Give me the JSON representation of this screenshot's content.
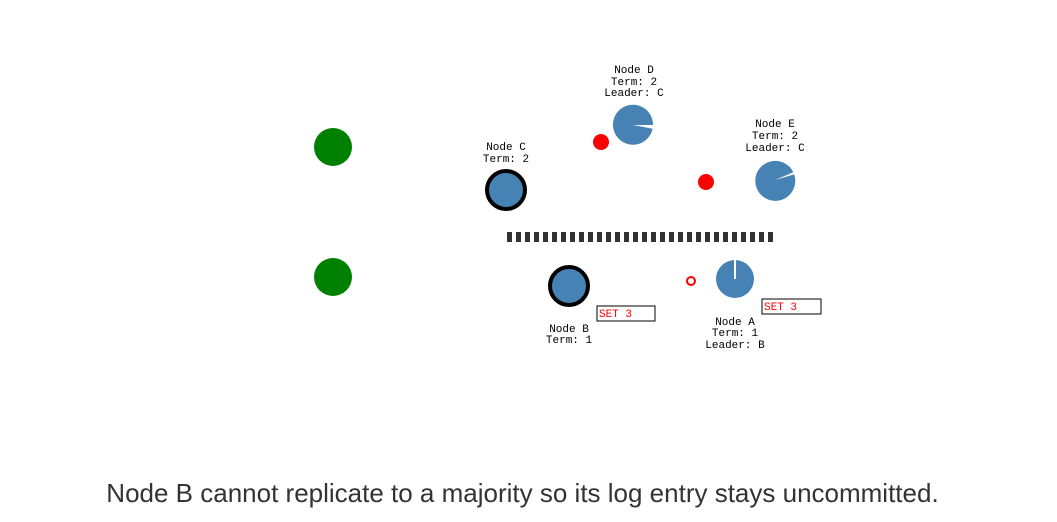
{
  "colors": {
    "client": "#008000",
    "node": "#4682b4",
    "message": "#ff0000",
    "partition": "#333333",
    "leader_ring": "#000000"
  },
  "nodes": {
    "a": {
      "name": "Node A",
      "term": "Term: 1",
      "leader": "Leader: B",
      "log_entry": "SET 3"
    },
    "b": {
      "name": "Node B",
      "term": "Term: 1",
      "log_entry": "SET 3"
    },
    "c": {
      "name": "Node C",
      "term": "Term: 2"
    },
    "d": {
      "name": "Node D",
      "term": "Term: 2",
      "leader": "Leader: C"
    },
    "e": {
      "name": "Node E",
      "term": "Term: 2",
      "leader": "Leader: C"
    }
  },
  "caption": "Node B cannot replicate to a majority so its log entry stays uncommitted."
}
